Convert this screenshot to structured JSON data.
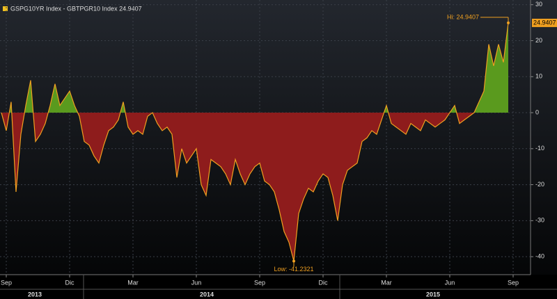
{
  "chart_data": {
    "type": "area",
    "series": [
      {
        "name": "GSPG10YR Index - GBTPGR10 Index 24.9407",
        "color": "#f0a020",
        "positive_color": "#5a9a1e",
        "negative_color": "#8e1c1c",
        "values": [
          0,
          -5,
          3,
          -22,
          -6,
          2,
          9,
          -8,
          -6,
          -3,
          2,
          8,
          2,
          4,
          6,
          2,
          -1,
          -8,
          -9,
          -12,
          -14,
          -9,
          -5,
          -4,
          -2,
          3,
          -4,
          -6,
          -5,
          -6,
          -1,
          0,
          -3,
          -5,
          -4,
          -6,
          -18,
          -10,
          -14,
          -12,
          -10,
          -20,
          -23,
          -13,
          -14,
          -15,
          -17,
          -20,
          -13,
          -17,
          -20,
          -17,
          -15,
          -14,
          -19,
          -20,
          -22,
          -27,
          -33,
          -36,
          -41.2321,
          -28,
          -24,
          -21,
          -22,
          -19,
          -17,
          -18,
          -23,
          -30,
          -20,
          -16,
          -15,
          -14,
          -8,
          -7,
          -5,
          -6,
          -2,
          2,
          -3,
          -4,
          -5,
          -6,
          -3,
          -4,
          -5,
          -2,
          -3,
          -4,
          -3,
          -2,
          0,
          2,
          -3,
          -2,
          -1,
          0,
          3,
          6,
          19,
          13,
          19,
          14,
          24.9407,
          null
        ]
      }
    ],
    "categories": [
      null,
      "Sep",
      null,
      null,
      null,
      null,
      null,
      null,
      null,
      null,
      null,
      null,
      null,
      null,
      "Dic",
      null,
      null,
      null,
      null,
      null,
      null,
      null,
      null,
      null,
      null,
      null,
      null,
      "Mar",
      null,
      null,
      null,
      null,
      null,
      null,
      null,
      null,
      null,
      null,
      null,
      null,
      "Jun",
      null,
      null,
      null,
      null,
      null,
      null,
      null,
      null,
      null,
      null,
      null,
      null,
      "Sep",
      null,
      null,
      null,
      null,
      null,
      null,
      null,
      null,
      null,
      null,
      null,
      null,
      "Dic",
      null,
      null,
      null,
      null,
      null,
      null,
      null,
      null,
      null,
      null,
      null,
      null,
      "Mar",
      null,
      null,
      null,
      null,
      null,
      null,
      null,
      null,
      null,
      null,
      null,
      null,
      "Jun",
      null,
      null,
      null,
      null,
      null,
      null,
      null,
      null,
      null,
      null,
      null,
      null,
      "Sep"
    ],
    "years": [
      "2013",
      "2014",
      "2015"
    ],
    "ylim": [
      -45,
      31.3
    ],
    "yticks": [
      -40,
      -30,
      -20,
      -10,
      0,
      10,
      20,
      30
    ],
    "grid": true,
    "hi_label": "Hi: 24.9407",
    "low_label": "Low: -41.2321",
    "last_value_label": "24.9407",
    "hi_index": 104,
    "low_index": 60
  }
}
